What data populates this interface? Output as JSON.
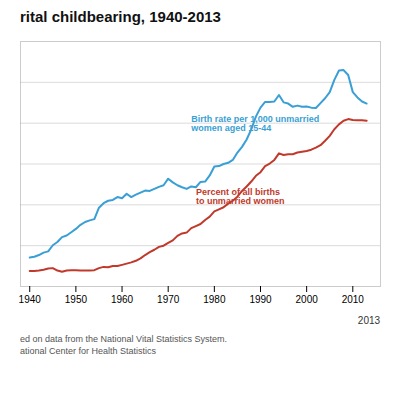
{
  "chart_data": {
    "type": "line",
    "title": "rital childbearing, 1940-2013",
    "footnotes": [
      "ed on data from the National Vital Statistics System.",
      "ational Center for Health Statistics"
    ],
    "x": [
      1940,
      1941,
      1942,
      1943,
      1944,
      1945,
      1946,
      1947,
      1948,
      1949,
      1950,
      1951,
      1952,
      1953,
      1954,
      1955,
      1956,
      1957,
      1958,
      1959,
      1960,
      1961,
      1962,
      1963,
      1964,
      1965,
      1966,
      1967,
      1968,
      1969,
      1970,
      1971,
      1972,
      1973,
      1974,
      1975,
      1976,
      1977,
      1978,
      1979,
      1980,
      1981,
      1982,
      1983,
      1984,
      1985,
      1986,
      1987,
      1988,
      1989,
      1990,
      1991,
      1992,
      1993,
      1994,
      1995,
      1996,
      1997,
      1998,
      1999,
      2000,
      2001,
      2002,
      2003,
      2004,
      2005,
      2006,
      2007,
      2008,
      2009,
      2010,
      2011,
      2012,
      2013
    ],
    "series": [
      {
        "color": "#3a9fd4",
        "values": [
          7.1,
          7.3,
          7.7,
          8.3,
          8.6,
          10.1,
          10.9,
          12.1,
          12.5,
          13.3,
          14.1,
          15.1,
          15.8,
          16.2,
          16.5,
          19.3,
          20.4,
          21.0,
          21.2,
          21.9,
          21.6,
          22.7,
          21.9,
          22.5,
          23.0,
          23.5,
          23.4,
          23.9,
          24.4,
          24.8,
          26.4,
          25.5,
          24.8,
          24.3,
          23.9,
          24.5,
          24.3,
          25.6,
          25.7,
          27.2,
          29.4,
          29.5,
          30.0,
          30.3,
          31.0,
          32.8,
          34.2,
          36.0,
          38.5,
          41.6,
          43.8,
          45.2,
          45.2,
          45.3,
          46.9,
          45.1,
          44.8,
          44.0,
          44.3,
          44.0,
          44.1,
          43.8,
          43.7,
          44.9,
          46.1,
          47.6,
          50.6,
          52.9,
          53.0,
          51.8,
          47.6,
          46.3,
          45.3,
          44.8
        ]
      },
      {
        "color": "#c0392b",
        "values": [
          3.8,
          3.8,
          3.9,
          4.1,
          4.4,
          4.5,
          3.9,
          3.6,
          3.9,
          4.0,
          4.0,
          3.9,
          3.9,
          3.9,
          4.0,
          4.5,
          4.8,
          4.7,
          5.0,
          5.0,
          5.3,
          5.6,
          5.9,
          6.3,
          6.9,
          7.7,
          8.4,
          9.0,
          9.7,
          10.0,
          10.7,
          11.3,
          12.4,
          13.0,
          13.2,
          14.3,
          14.8,
          15.3,
          16.3,
          17.1,
          18.4,
          18.9,
          19.4,
          20.3,
          21.0,
          22.0,
          23.4,
          24.5,
          25.7,
          27.1,
          28.0,
          29.5,
          30.1,
          31.0,
          32.6,
          32.2,
          32.4,
          32.4,
          32.8,
          33.0,
          33.2,
          33.5,
          34.0,
          34.6,
          35.7,
          36.9,
          38.5,
          39.7,
          40.6,
          41.0,
          40.8,
          40.7,
          40.7,
          40.6
        ]
      }
    ],
    "annotations": [
      {
        "text": "Birth rate per 1,000 unmarried\nwomen aged 15-44",
        "x": 1975,
        "y": 40,
        "color": "#3a9fd4"
      },
      {
        "text": "Percent of all births\nto unmarried women",
        "x": 1976,
        "y": 22,
        "color": "#c0392b"
      },
      {
        "text": "2013",
        "x": 2013.5,
        "y": -7.5
      }
    ],
    "xlim": [
      1938,
      2016
    ],
    "ylim": [
      0,
      60
    ],
    "xticks": [
      1940,
      1950,
      1960,
      1970,
      1980,
      1990,
      2000,
      2010
    ],
    "yticks": [
      10,
      20,
      30,
      40,
      50
    ],
    "grid": true,
    "tick_labels": "x"
  }
}
